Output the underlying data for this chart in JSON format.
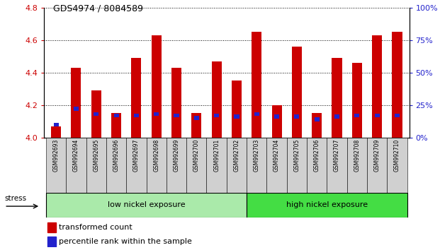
{
  "title": "GDS4974 / 8084589",
  "samples": [
    "GSM992693",
    "GSM992694",
    "GSM992695",
    "GSM992696",
    "GSM992697",
    "GSM992698",
    "GSM992699",
    "GSM992700",
    "GSM992701",
    "GSM992702",
    "GSM992703",
    "GSM992704",
    "GSM992705",
    "GSM992706",
    "GSM992707",
    "GSM992708",
    "GSM992709",
    "GSM992710"
  ],
  "transformed_count": [
    4.07,
    4.43,
    4.29,
    4.15,
    4.49,
    4.63,
    4.43,
    4.15,
    4.47,
    4.35,
    4.65,
    4.2,
    4.56,
    4.15,
    4.49,
    4.46,
    4.63,
    4.65
  ],
  "percentile_rank": [
    10,
    22,
    18,
    17,
    17,
    18,
    17,
    15,
    17,
    16,
    18,
    16,
    16,
    14,
    16,
    17,
    17,
    17
  ],
  "ylim_left": [
    4.0,
    4.8
  ],
  "ylim_right": [
    0,
    100
  ],
  "bar_color": "#cc0000",
  "percentile_color": "#2222cc",
  "group1_label": "low nickel exposure",
  "group1_count": 10,
  "group2_label": "high nickel exposure",
  "group2_count": 8,
  "group1_color": "#aaeaaa",
  "group2_color": "#44dd44",
  "stress_label": "stress",
  "legend1": "transformed count",
  "legend2": "percentile rank within the sample",
  "yticks_left": [
    4.0,
    4.2,
    4.4,
    4.6,
    4.8
  ],
  "yticks_right": [
    0,
    25,
    50,
    75,
    100
  ],
  "bar_width": 0.5,
  "baseline": 4.0,
  "tick_color_left": "#cc0000",
  "tick_color_right": "#2222cc"
}
